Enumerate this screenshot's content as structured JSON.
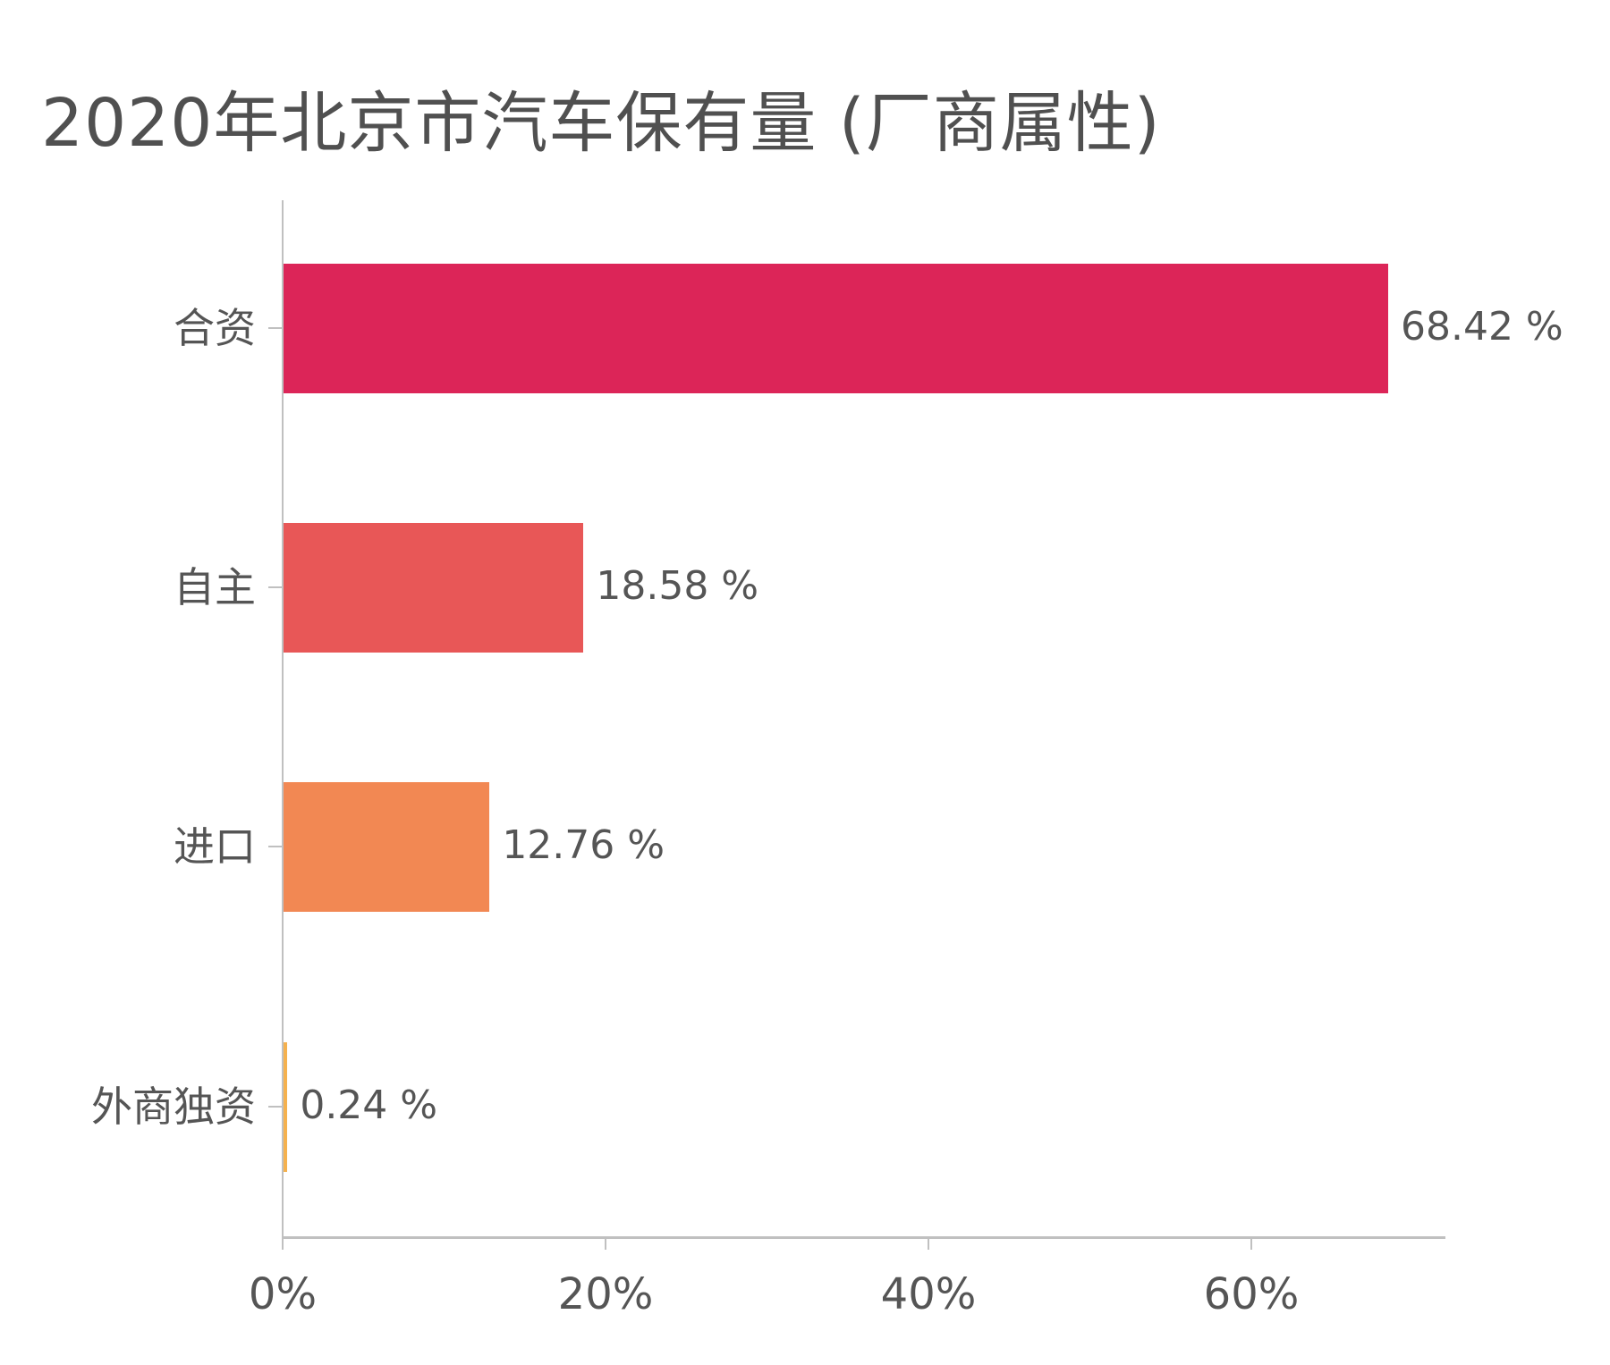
{
  "chart_data": {
    "type": "bar",
    "orientation": "horizontal",
    "title": "2020年北京市汽车保有量 (厂商属性)",
    "xlabel": "",
    "ylabel": "",
    "categories": [
      "合资",
      "自主",
      "进口",
      "外商独资"
    ],
    "values": [
      68.42,
      18.58,
      12.76,
      0.24
    ],
    "value_labels": [
      "68.42 %",
      "18.58 %",
      "12.76 %",
      "0.24 %"
    ],
    "colors": [
      "#DC2558",
      "#E85757",
      "#F28853",
      "#F5B14E"
    ],
    "xlim": [
      0,
      71.9
    ],
    "x_ticks": [
      0,
      20,
      40,
      60
    ],
    "x_tick_labels": [
      "0%",
      "20%",
      "40%",
      "60%"
    ],
    "grid": false,
    "legend": null
  },
  "colors": {
    "axis": "#C0C0C0",
    "text": "#555555",
    "background": "#FFFFFF"
  }
}
